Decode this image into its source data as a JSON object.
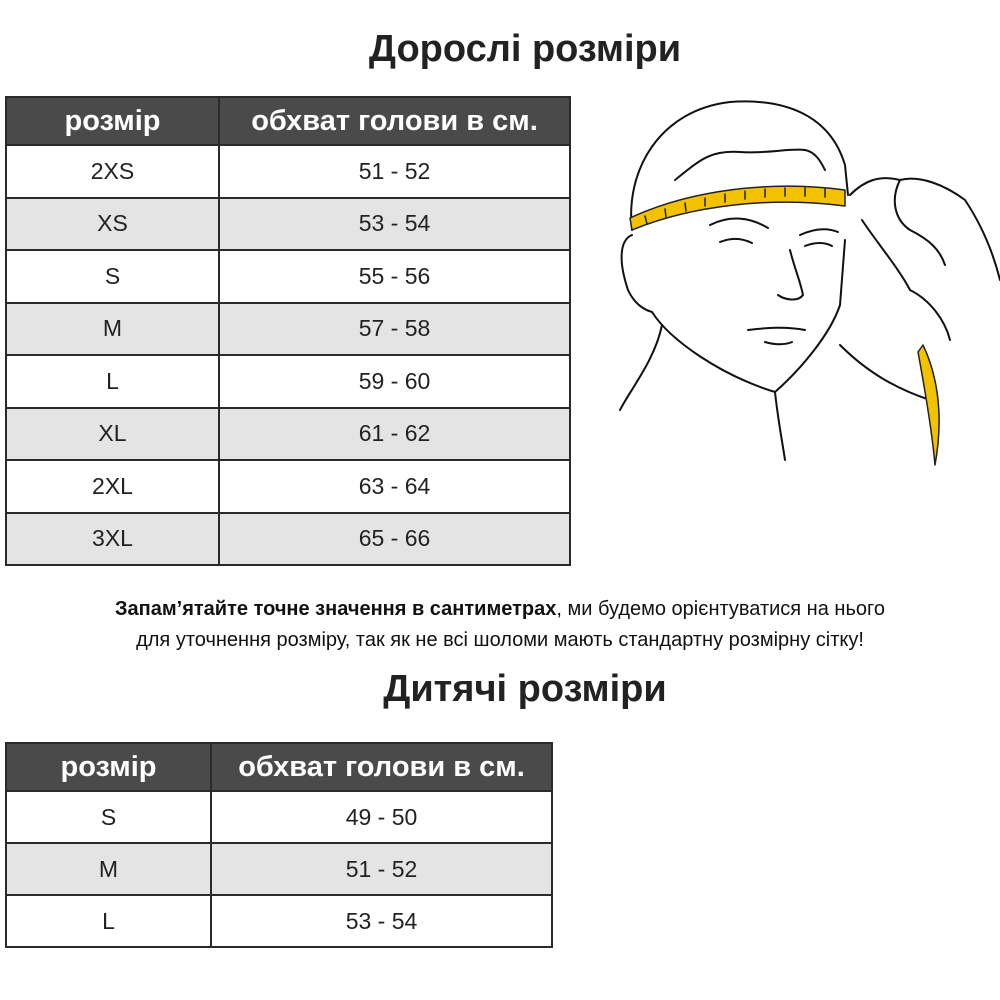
{
  "adult": {
    "title": "Дорослі розміри",
    "headers": [
      "розмір",
      "обхват голови в см."
    ],
    "rows": [
      [
        "2XS",
        "51 - 52"
      ],
      [
        "XS",
        "53 - 54"
      ],
      [
        "S",
        "55 - 56"
      ],
      [
        "M",
        "57 - 58"
      ],
      [
        "L",
        "59 - 60"
      ],
      [
        "XL",
        "61 - 62"
      ],
      [
        "2XL",
        "63 - 64"
      ],
      [
        "3XL",
        "65 - 66"
      ]
    ]
  },
  "note": {
    "bold": "Запам’ятайте точне значення в сантиметрах",
    "rest_line1": ", ми будемо орієнтуватися на нього",
    "line2": "для уточнення розміру, так як не всі шоломи мають стандартну розмірну сітку!"
  },
  "kids": {
    "title": "Дитячі розміри",
    "headers": [
      "розмір",
      "обхват голови в см."
    ],
    "rows": [
      [
        "S",
        "49 - 50"
      ],
      [
        "M",
        "51 - 52"
      ],
      [
        "L",
        "53 - 54"
      ]
    ]
  },
  "illustration": {
    "icon": "head-measuring-tape-illustration",
    "tape_color": "#f2c200",
    "header_color": "#4a4a4a",
    "alt_row_color": "#e4e4e4"
  }
}
